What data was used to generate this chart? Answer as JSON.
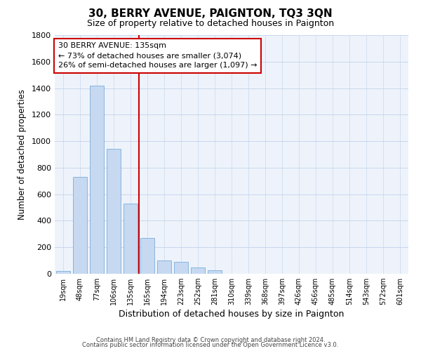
{
  "title": "30, BERRY AVENUE, PAIGNTON, TQ3 3QN",
  "subtitle": "Size of property relative to detached houses in Paignton",
  "xlabel": "Distribution of detached houses by size in Paignton",
  "ylabel": "Number of detached properties",
  "bar_labels": [
    "19sqm",
    "48sqm",
    "77sqm",
    "106sqm",
    "135sqm",
    "165sqm",
    "194sqm",
    "223sqm",
    "252sqm",
    "281sqm",
    "310sqm",
    "339sqm",
    "368sqm",
    "397sqm",
    "426sqm",
    "456sqm",
    "485sqm",
    "514sqm",
    "543sqm",
    "572sqm",
    "601sqm"
  ],
  "bar_values": [
    20,
    730,
    1420,
    940,
    530,
    270,
    100,
    90,
    50,
    28,
    0,
    0,
    0,
    0,
    0,
    0,
    0,
    0,
    0,
    0,
    0
  ],
  "bar_color": "#c6d9f1",
  "bar_edge_color": "#7aadda",
  "vline_x_idx": 4,
  "vline_color": "#cc0000",
  "ylim": [
    0,
    1800
  ],
  "yticks": [
    0,
    200,
    400,
    600,
    800,
    1000,
    1200,
    1400,
    1600,
    1800
  ],
  "annotation_line1": "30 BERRY AVENUE: 135sqm",
  "annotation_line2": "← 73% of detached houses are smaller (3,074)",
  "annotation_line3": "26% of semi-detached houses are larger (1,097) →",
  "annotation_fontsize": 8.0,
  "footer_line1": "Contains HM Land Registry data © Crown copyright and database right 2024.",
  "footer_line2": "Contains public sector information licensed under the Open Government Licence v3.0.",
  "grid_color": "#c8d8ec",
  "bg_color": "#eef3fb"
}
